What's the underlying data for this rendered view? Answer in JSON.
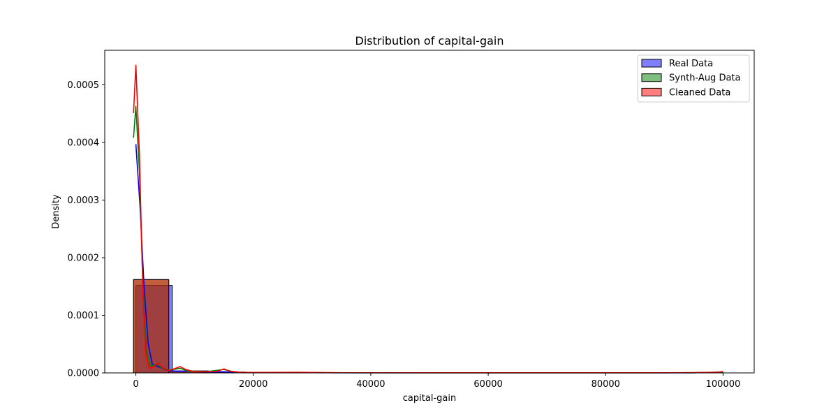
{
  "chart_data": {
    "type": "histogram",
    "title": "Distribution of capital-gain",
    "xlabel": "capital-gain",
    "ylabel": "Density",
    "xlim": [
      -5300,
      105300
    ],
    "ylim": [
      0,
      0.00056
    ],
    "x_ticks": [
      0,
      20000,
      40000,
      60000,
      80000,
      100000
    ],
    "x_tick_labels": [
      "0",
      "20000",
      "40000",
      "60000",
      "80000",
      "100000"
    ],
    "y_ticks": [
      0,
      0.0001,
      0.0002,
      0.0003,
      0.0004,
      0.0005
    ],
    "y_tick_labels": [
      "0.0000",
      "0.0001",
      "0.0002",
      "0.0003",
      "0.0004",
      "0.0005"
    ],
    "legend_position": "top-right",
    "series": [
      {
        "name": "Real Data",
        "color": "#0000ff",
        "bins": [
          {
            "x0": 0,
            "x1": 6200,
            "y": 0.000152
          },
          {
            "x0": 6200,
            "x1": 12400,
            "y": 3.5e-06
          },
          {
            "x0": 12400,
            "x1": 18600,
            "y": 1.5e-06
          }
        ],
        "kde": [
          [
            0,
            0.000397
          ],
          [
            700,
            0.00029
          ],
          [
            1400,
            0.00015
          ],
          [
            2100,
            5e-05
          ],
          [
            2800,
            1.5e-05
          ],
          [
            3500,
            1.2e-05
          ],
          [
            4500,
            8e-06
          ],
          [
            5500,
            4e-06
          ],
          [
            7000,
            3e-06
          ],
          [
            9000,
            3e-06
          ],
          [
            11000,
            2e-06
          ],
          [
            13000,
            1.5e-06
          ],
          [
            15000,
            2e-06
          ],
          [
            17000,
            1e-06
          ],
          [
            20000,
            6e-07
          ],
          [
            30000,
            3e-07
          ],
          [
            60000,
            2e-07
          ],
          [
            95000,
            2e-07
          ],
          [
            100000,
            1.5e-06
          ]
        ]
      },
      {
        "name": "Synth-Aug Data",
        "color": "#008000",
        "bins": [
          {
            "x0": -400,
            "x1": 5600,
            "y": 0.000162
          },
          {
            "x0": 5600,
            "x1": 11600,
            "y": 3e-06
          },
          {
            "x0": 11600,
            "x1": 17600,
            "y": 1.5e-06
          }
        ],
        "kde": [
          [
            -400,
            0.000408
          ],
          [
            0,
            0.000463
          ],
          [
            600,
            0.00035
          ],
          [
            1200,
            0.00015
          ],
          [
            1800,
            4e-05
          ],
          [
            2500,
            1.2e-05
          ],
          [
            3500,
            1.5e-05
          ],
          [
            4500,
            8e-06
          ],
          [
            6000,
            5e-06
          ],
          [
            7500,
            8e-06
          ],
          [
            9000,
            3e-06
          ],
          [
            12000,
            2e-06
          ],
          [
            15000,
            6e-06
          ],
          [
            17000,
            1e-06
          ],
          [
            22000,
            5e-07
          ],
          [
            40000,
            2e-07
          ],
          [
            95000,
            2e-07
          ],
          [
            100000,
            1.5e-06
          ]
        ]
      },
      {
        "name": "Cleaned Data",
        "color": "#ff0000",
        "bins": [
          {
            "x0": -400,
            "x1": 5600,
            "y": 0.000162
          },
          {
            "x0": 5600,
            "x1": 11600,
            "y": 3e-06
          },
          {
            "x0": 11600,
            "x1": 17600,
            "y": 1.5e-06
          }
        ],
        "kde": [
          [
            -400,
            0.000451
          ],
          [
            0,
            0.000534
          ],
          [
            600,
            0.00038
          ],
          [
            1200,
            0.00014
          ],
          [
            1700,
            3e-05
          ],
          [
            2300,
            8e-06
          ],
          [
            3000,
            1e-05
          ],
          [
            3800,
            1.7e-05
          ],
          [
            4600,
            9e-06
          ],
          [
            5500,
            4e-06
          ],
          [
            6500,
            7e-06
          ],
          [
            7500,
            1.1e-05
          ],
          [
            8500,
            6e-06
          ],
          [
            10000,
            2e-06
          ],
          [
            12500,
            2e-06
          ],
          [
            14000,
            3e-06
          ],
          [
            15000,
            7e-06
          ],
          [
            16000,
            3e-06
          ],
          [
            18000,
            1e-06
          ],
          [
            22000,
            8e-07
          ],
          [
            28000,
            1e-06
          ],
          [
            35000,
            3e-07
          ],
          [
            60000,
            2e-07
          ],
          [
            90000,
            2e-07
          ],
          [
            95000,
            6e-07
          ],
          [
            99000,
            1e-06
          ],
          [
            100000,
            2.5e-06
          ]
        ]
      }
    ]
  }
}
